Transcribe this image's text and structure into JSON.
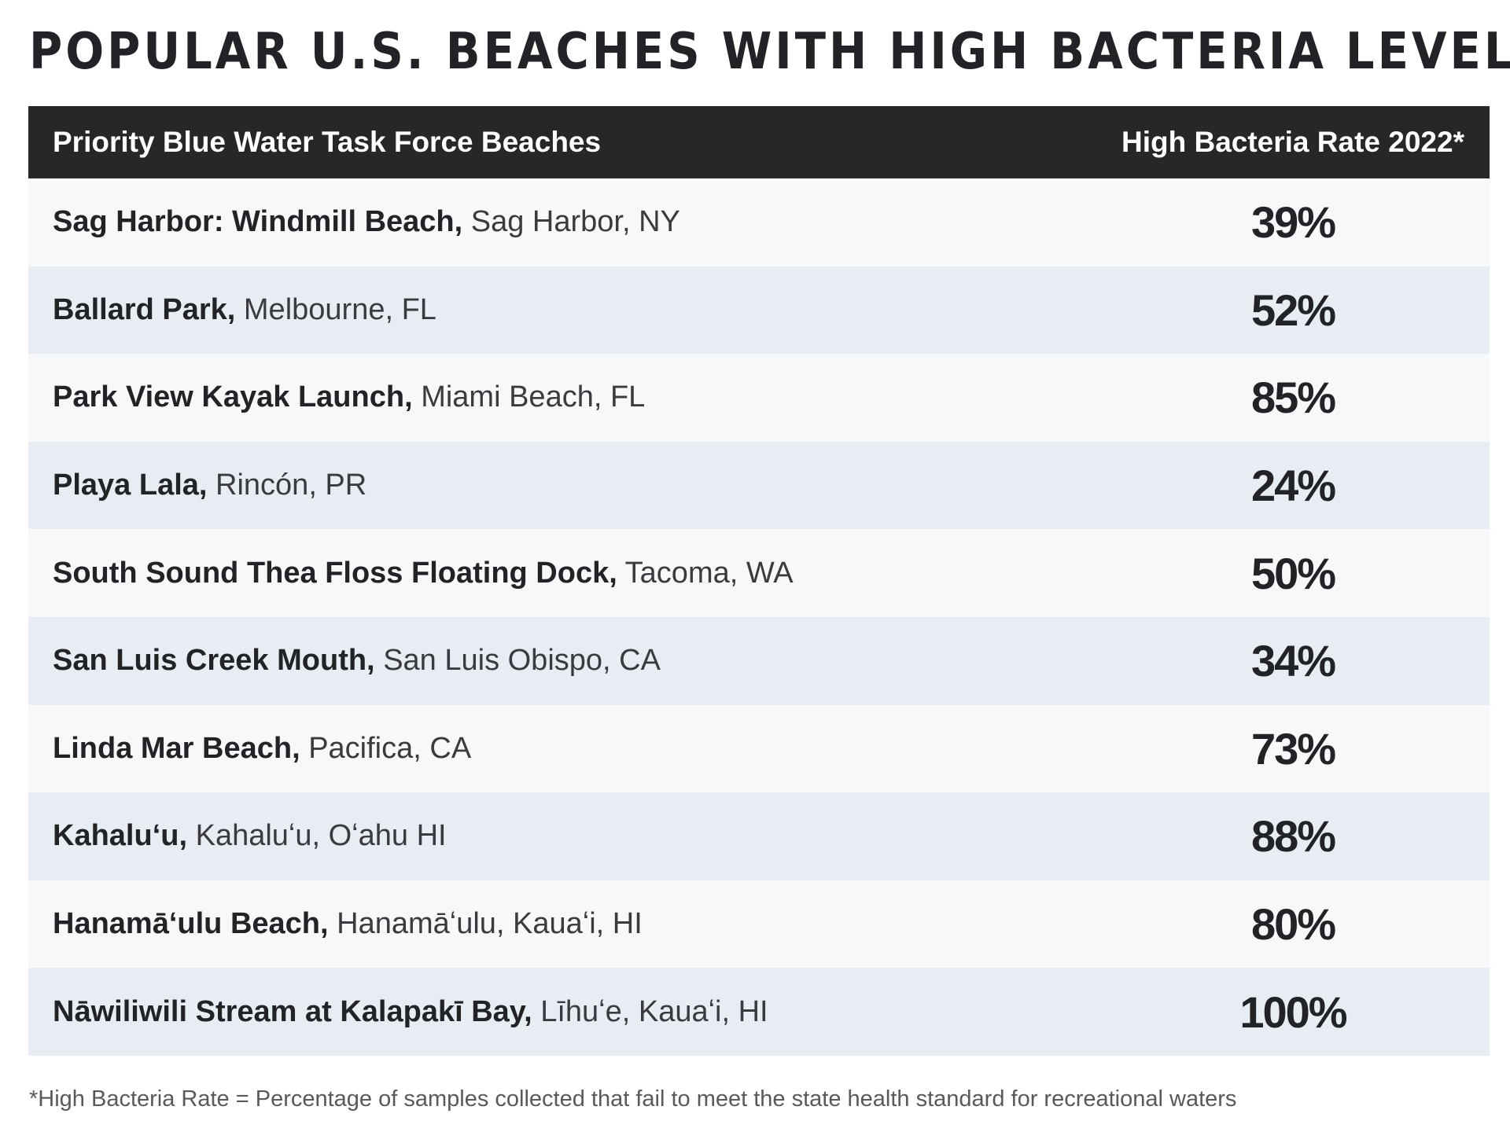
{
  "title": "POPULAR U.S. BEACHES WITH HIGH BACTERIA LEVELS",
  "columns": {
    "beach": "Priority Blue Water Task Force Beaches",
    "rate": "High Bacteria Rate 2022*"
  },
  "rows": [
    {
      "name": "Sag Harbor: Windmill Beach,",
      "location": "Sag Harbor, NY",
      "rate": "39%"
    },
    {
      "name": "Ballard Park,",
      "location": "Melbourne, FL",
      "rate": "52%"
    },
    {
      "name": "Park View Kayak Launch,",
      "location": "Miami Beach, FL",
      "rate": "85%"
    },
    {
      "name": "Playa Lala,",
      "location": "Rincón, PR",
      "rate": "24%"
    },
    {
      "name": "South Sound Thea Floss Floating Dock,",
      "location": "Tacoma, WA",
      "rate": "50%"
    },
    {
      "name": "San Luis Creek Mouth,",
      "location": "San Luis Obispo, CA",
      "rate": "34%"
    },
    {
      "name": "Linda Mar Beach,",
      "location": "Pacifica, CA",
      "rate": "73%"
    },
    {
      "name": "Kahaluʻu,",
      "location": "Kahaluʻu, Oʻahu HI",
      "rate": "88%"
    },
    {
      "name": "Hanamāʻulu Beach,",
      "location": "Hanamāʻulu, Kauaʻi, HI",
      "rate": "80%"
    },
    {
      "name": "Nāwiliwili Stream at Kalapakī Bay,",
      "location": "Līhuʻe, Kauaʻi, HI",
      "rate": "100%"
    }
  ],
  "footnote": "*High Bacteria Rate = Percentage of samples collected that fail to meet the state health standard for recreational waters",
  "chart_data": {
    "type": "table",
    "title": "POPULAR U.S. BEACHES WITH HIGH BACTERIA LEVELS",
    "columns": [
      "Priority Blue Water Task Force Beaches",
      "High Bacteria Rate 2022*"
    ],
    "categories": [
      "Sag Harbor: Windmill Beach, Sag Harbor, NY",
      "Ballard Park, Melbourne, FL",
      "Park View Kayak Launch, Miami Beach, FL",
      "Playa Lala, Rincón, PR",
      "South Sound Thea Floss Floating Dock, Tacoma, WA",
      "San Luis Creek Mouth, San Luis Obispo, CA",
      "Linda Mar Beach, Pacifica, CA",
      "Kahaluʻu, Kahaluʻu, Oʻahu HI",
      "Hanamāʻulu Beach, Hanamāʻulu, Kauaʻi, HI",
      "Nāwiliwili Stream at Kalapakī Bay, Līhuʻe, Kauaʻi, HI"
    ],
    "values": [
      39,
      52,
      85,
      24,
      50,
      34,
      73,
      88,
      80,
      100
    ],
    "unit": "%"
  }
}
